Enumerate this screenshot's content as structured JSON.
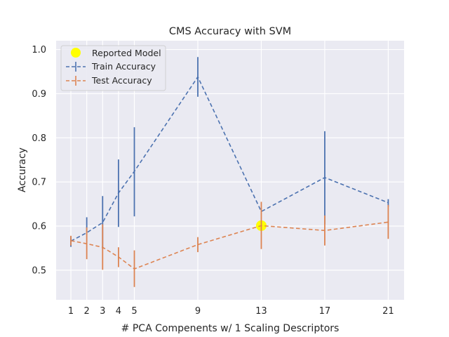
{
  "chart_data": {
    "type": "line",
    "title": "CMS Accuracy with SVM",
    "xlabel": "# PCA Compenents w/ 1 Scaling Descriptors",
    "ylabel": "Accuracy",
    "x": [
      1,
      2,
      3,
      4,
      5,
      9,
      13,
      17,
      21
    ],
    "xlim": [
      0.07,
      22.0
    ],
    "ylim": [
      0.433,
      1.02
    ],
    "yticks": [
      0.5,
      0.6,
      0.7,
      0.8,
      0.9,
      1.0
    ],
    "ytick_labels": [
      "0.5",
      "0.6",
      "0.7",
      "0.8",
      "0.9",
      "1.0"
    ],
    "xtick_labels": [
      "1",
      "2",
      "3",
      "4",
      "5",
      "9",
      "13",
      "17",
      "21"
    ],
    "grid": true,
    "legend_position": "top-left",
    "series": [
      {
        "name": "Train Accuracy",
        "color": "#4c72b0",
        "style": "dashed",
        "values": [
          0.566,
          0.585,
          0.608,
          0.675,
          0.724,
          0.938,
          0.633,
          0.71,
          0.653
        ],
        "err_low": [
          0.553,
          0.585,
          0.548,
          0.598,
          0.622,
          0.893,
          0.633,
          0.604,
          0.644
        ],
        "err_high": [
          0.576,
          0.62,
          0.668,
          0.751,
          0.824,
          0.983,
          0.633,
          0.815,
          0.661
        ]
      },
      {
        "name": "Test Accuracy",
        "color": "#dd8452",
        "style": "dashed",
        "values": [
          0.567,
          0.56,
          0.552,
          0.53,
          0.503,
          0.558,
          0.601,
          0.59,
          0.609
        ],
        "err_low": [
          0.556,
          0.525,
          0.501,
          0.507,
          0.462,
          0.541,
          0.548,
          0.556,
          0.571
        ],
        "err_high": [
          0.578,
          0.597,
          0.604,
          0.552,
          0.545,
          0.575,
          0.655,
          0.624,
          0.648
        ]
      }
    ],
    "highlight": {
      "name": "Reported Model",
      "x": 13,
      "y": 0.601,
      "color": "#ffff00"
    }
  }
}
